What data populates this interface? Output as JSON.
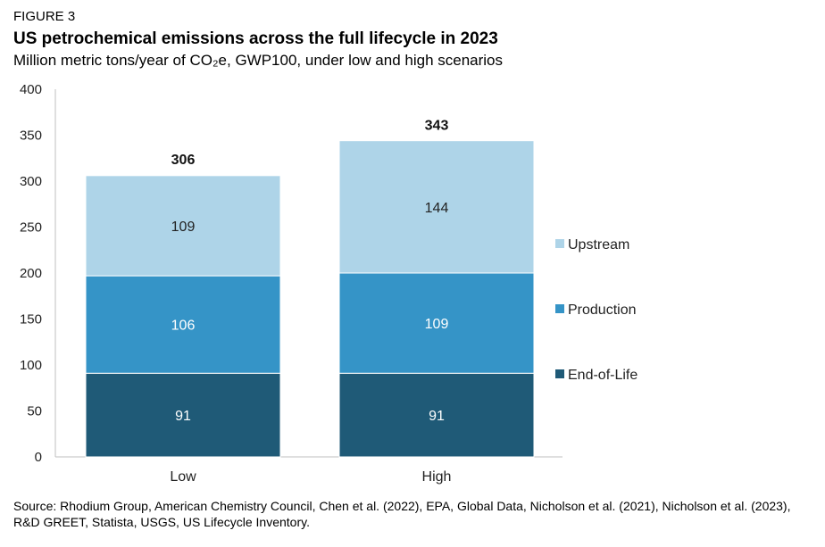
{
  "figure_label": "FIGURE 3",
  "title": "US petrochemical emissions across the full lifecycle in 2023",
  "subtitle": "Million metric tons/year of CO₂e, GWP100, under low and high scenarios",
  "source": "Source: Rhodium Group, American Chemistry Council, Chen et al. (2022), EPA, Global Data, Nicholson et al. (2021), Nicholson et al. (2023), R&D GREET, Statista, USGS, US Lifecycle Inventory.",
  "chart_data": {
    "type": "bar",
    "stacked": true,
    "categories": [
      "Low",
      "High"
    ],
    "series": [
      {
        "name": "End-of-Life",
        "values": [
          91,
          91
        ],
        "color": "#1f5a77"
      },
      {
        "name": "Production",
        "values": [
          106,
          109
        ],
        "color": "#3594c7"
      },
      {
        "name": "Upstream",
        "values": [
          109,
          144
        ],
        "color": "#aed4e8"
      }
    ],
    "totals": [
      306,
      343
    ],
    "ylim": [
      0,
      400
    ],
    "yticks": [
      0,
      50,
      100,
      150,
      200,
      250,
      300,
      350,
      400
    ],
    "grid": false,
    "legend_position": "right",
    "legend_order": [
      "Upstream",
      "Production",
      "End-of-Life"
    ]
  }
}
